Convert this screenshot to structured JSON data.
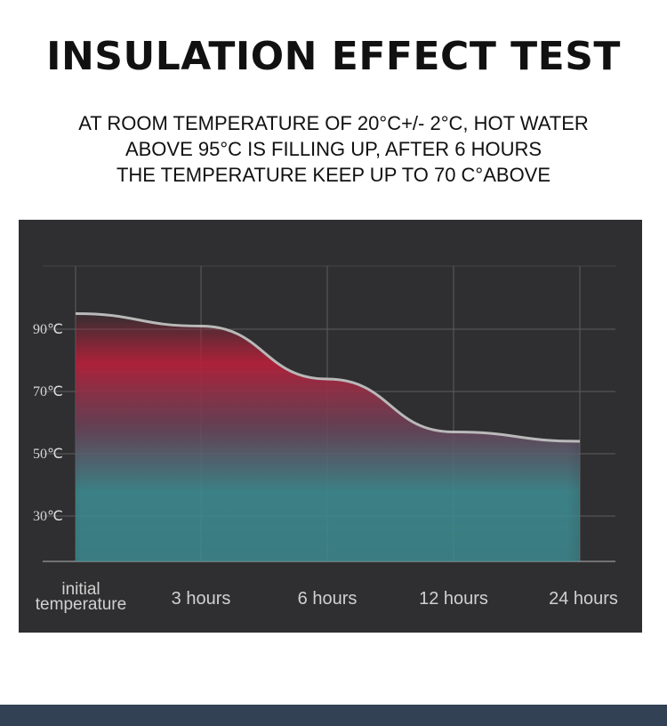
{
  "header": {
    "title": "INSULATION EFFECT TEST",
    "lines": [
      "AT ROOM TEMPERATURE OF 20°C+/- 2°C, HOT WATER",
      "ABOVE 95°C IS FILLING UP, AFTER 6 HOURS",
      "THE TEMPERATURE KEEP UP TO 70 C°ABOVE"
    ]
  },
  "colors": {
    "panel_bg": "#2f2f31",
    "curve": "#b9b9b9",
    "warm_fill": "#b3213a",
    "cool_fill": "#3d8a8f",
    "footer_bar": "#334155"
  },
  "chart_data": {
    "type": "area",
    "title": "",
    "xlabel": "",
    "ylabel": "",
    "categories": [
      "initial temperature",
      "3 hours",
      "6 hours",
      "12 hours",
      "24 hours"
    ],
    "category_lines": [
      [
        "initial",
        "temperature"
      ],
      [
        "3 hours"
      ],
      [
        "6 hours"
      ],
      [
        "12 hours"
      ],
      [
        "24 hours"
      ]
    ],
    "y_ticks": [
      {
        "value": 90,
        "label": "90℃"
      },
      {
        "value": 70,
        "label": "70℃"
      },
      {
        "value": 50,
        "label": "50℃"
      },
      {
        "value": 30,
        "label": "30℃"
      }
    ],
    "ylim": [
      10,
      110
    ],
    "values": [
      95,
      91,
      74,
      57,
      54
    ],
    "grid": true,
    "legend": "none"
  }
}
